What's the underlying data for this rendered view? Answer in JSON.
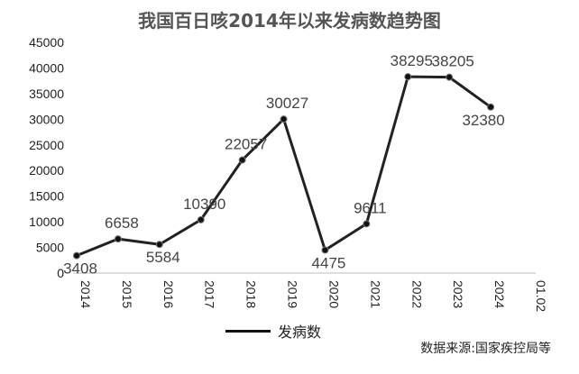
{
  "chart_data": {
    "type": "line",
    "title": "我国百日咳2014年以来发病数趋势图",
    "categories": [
      "2014",
      "2015",
      "2016",
      "2017",
      "2018",
      "2019",
      "2020",
      "2021",
      "2022",
      "2023",
      "2024",
      "01.02"
    ],
    "series": [
      {
        "name": "发病数",
        "values": [
          3408,
          6658,
          5584,
          10390,
          22057,
          30027,
          4475,
          9611,
          38295,
          38205,
          32380,
          null
        ]
      }
    ],
    "data_labels": [
      "3408",
      "6658",
      "5584",
      "10390",
      "22057",
      "30027",
      "4475",
      "9611",
      "38295",
      "38205",
      "32380"
    ],
    "ylim": [
      0,
      45000
    ],
    "yticks": [
      "0",
      "5000",
      "10000",
      "15000",
      "20000",
      "25000",
      "30000",
      "35000",
      "40000",
      "45000"
    ],
    "grid": false,
    "legend": "bottom",
    "line_color": "#222222"
  },
  "source": "数据来源:国家疾控局等"
}
